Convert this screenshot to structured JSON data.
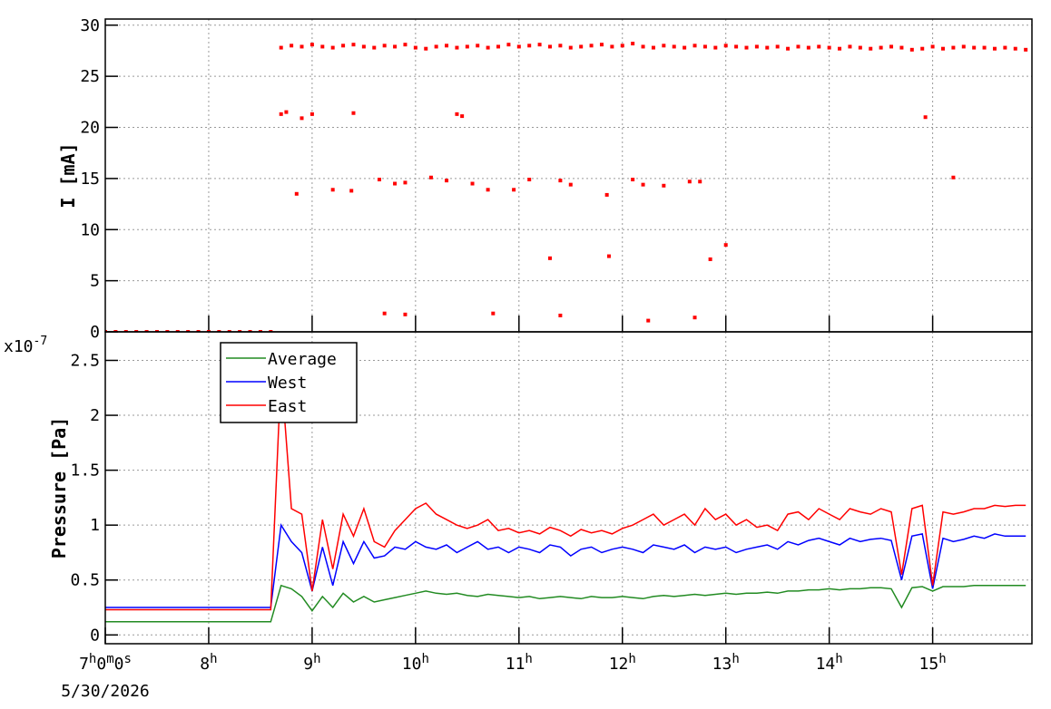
{
  "chart_data": [
    {
      "type": "scatter",
      "y_label": "I [mA]",
      "color": "#ff0000",
      "grid": true,
      "xlim": [
        7,
        15.96
      ],
      "ylim": [
        0,
        30.6
      ],
      "yticks": [
        0,
        5,
        10,
        15,
        20,
        25,
        30
      ],
      "xticks": [
        8,
        9,
        10,
        11,
        12,
        13,
        14,
        15
      ],
      "x": [
        7.0,
        7.1,
        7.2,
        7.3,
        7.4,
        7.5,
        7.6,
        7.7,
        7.8,
        7.9,
        8.0,
        8.1,
        8.2,
        8.3,
        8.4,
        8.5,
        8.6,
        8.7,
        8.8,
        8.9,
        9.0,
        9.1,
        9.2,
        9.3,
        9.4,
        9.5,
        9.6,
        9.7,
        9.8,
        9.9,
        10.0,
        10.1,
        10.2,
        10.3,
        10.4,
        10.5,
        10.6,
        10.7,
        10.8,
        10.9,
        11.0,
        11.1,
        11.2,
        11.3,
        11.4,
        11.5,
        11.6,
        11.7,
        11.8,
        11.9,
        12.0,
        12.1,
        12.2,
        12.3,
        12.4,
        12.5,
        12.6,
        12.7,
        12.8,
        12.9,
        13.0,
        13.1,
        13.2,
        13.3,
        13.4,
        13.5,
        13.6,
        13.7,
        13.8,
        13.9,
        14.0,
        14.1,
        14.2,
        14.3,
        14.4,
        14.5,
        14.6,
        14.7,
        14.8,
        14.9,
        15.0,
        15.1,
        15.2,
        15.3,
        15.4,
        15.5,
        15.6,
        15.7,
        15.8,
        15.9,
        8.7,
        8.75,
        8.85,
        8.9,
        9.0,
        9.2,
        9.38,
        9.4,
        9.65,
        9.8,
        9.9,
        10.15,
        10.3,
        10.4,
        10.45,
        10.55,
        10.7,
        10.95,
        11.1,
        11.3,
        11.4,
        11.5,
        11.85,
        11.87,
        12.1,
        12.2,
        12.4,
        12.65,
        12.75,
        12.85,
        13.0,
        14.93,
        15.2,
        9.7,
        9.9,
        10.75,
        11.4,
        12.25,
        12.7
      ],
      "values": [
        0,
        0,
        0,
        0,
        0,
        0,
        0,
        0,
        0,
        0,
        0,
        0,
        0,
        0,
        0,
        0,
        0,
        27.8,
        28.0,
        27.9,
        28.1,
        27.9,
        27.8,
        28.0,
        28.1,
        27.9,
        27.8,
        28.0,
        27.9,
        28.1,
        27.8,
        27.7,
        27.9,
        28.0,
        27.8,
        27.9,
        28.0,
        27.8,
        27.9,
        28.1,
        27.9,
        28.0,
        28.1,
        27.9,
        28.0,
        27.8,
        27.9,
        28.0,
        28.1,
        27.9,
        28.0,
        28.2,
        27.9,
        27.8,
        28.0,
        27.9,
        27.8,
        28.0,
        27.9,
        27.8,
        28.0,
        27.9,
        27.8,
        27.9,
        27.8,
        27.9,
        27.7,
        27.9,
        27.8,
        27.9,
        27.8,
        27.7,
        27.9,
        27.8,
        27.7,
        27.8,
        27.9,
        27.8,
        27.6,
        27.7,
        27.9,
        27.7,
        27.8,
        27.9,
        27.8,
        27.8,
        27.7,
        27.8,
        27.7,
        27.6,
        21.3,
        21.5,
        13.5,
        20.9,
        21.3,
        13.9,
        13.8,
        21.4,
        14.9,
        14.5,
        14.6,
        15.1,
        14.8,
        21.3,
        21.1,
        14.5,
        13.9,
        13.9,
        14.9,
        7.2,
        14.8,
        14.4,
        13.4,
        7.4,
        14.9,
        14.4,
        14.3,
        14.7,
        14.7,
        7.1,
        8.5,
        21.0,
        15.1,
        1.8,
        1.7,
        1.8,
        1.6,
        1.1,
        1.4
      ]
    },
    {
      "type": "line",
      "y_label": "Pressure [Pa]",
      "exponent_label": "x10-7",
      "date_label": "5/30/2026",
      "grid": true,
      "legend": "top-left",
      "xlim": [
        7,
        15.96
      ],
      "ylim": [
        -0.08,
        2.76
      ],
      "yticks": [
        0,
        0.5,
        1,
        1.5,
        2,
        2.5
      ],
      "xticks": [
        {
          "value": 7,
          "label": "7h0m0s"
        },
        {
          "value": 8,
          "label": "8h"
        },
        {
          "value": 9,
          "label": "9h"
        },
        {
          "value": 10,
          "label": "10h"
        },
        {
          "value": 11,
          "label": "11h"
        },
        {
          "value": 12,
          "label": "12h"
        },
        {
          "value": 13,
          "label": "13h"
        },
        {
          "value": 14,
          "label": "14h"
        },
        {
          "value": 15,
          "label": "15h"
        }
      ],
      "x": [
        7.0,
        7.1,
        7.2,
        7.3,
        7.4,
        7.5,
        7.6,
        7.7,
        7.8,
        7.9,
        8.0,
        8.1,
        8.2,
        8.3,
        8.4,
        8.5,
        8.6,
        8.7,
        8.8,
        8.9,
        9.0,
        9.1,
        9.2,
        9.3,
        9.4,
        9.5,
        9.6,
        9.7,
        9.8,
        9.9,
        10.0,
        10.1,
        10.2,
        10.3,
        10.4,
        10.5,
        10.6,
        10.7,
        10.8,
        10.9,
        11.0,
        11.1,
        11.2,
        11.3,
        11.4,
        11.5,
        11.6,
        11.7,
        11.8,
        11.9,
        12.0,
        12.1,
        12.2,
        12.3,
        12.4,
        12.5,
        12.6,
        12.7,
        12.8,
        12.9,
        13.0,
        13.1,
        13.2,
        13.3,
        13.4,
        13.5,
        13.6,
        13.7,
        13.8,
        13.9,
        14.0,
        14.1,
        14.2,
        14.3,
        14.4,
        14.5,
        14.6,
        14.7,
        14.8,
        14.9,
        15.0,
        15.1,
        15.2,
        15.3,
        15.4,
        15.5,
        15.6,
        15.7,
        15.8,
        15.9
      ],
      "series": [
        {
          "name": "Average",
          "color": "#228b22",
          "values": [
            0.12,
            0.12,
            0.12,
            0.12,
            0.12,
            0.12,
            0.12,
            0.12,
            0.12,
            0.12,
            0.12,
            0.12,
            0.12,
            0.12,
            0.12,
            0.12,
            0.12,
            0.45,
            0.42,
            0.35,
            0.22,
            0.35,
            0.25,
            0.38,
            0.3,
            0.35,
            0.3,
            0.32,
            0.34,
            0.36,
            0.38,
            0.4,
            0.38,
            0.37,
            0.38,
            0.36,
            0.35,
            0.37,
            0.36,
            0.35,
            0.34,
            0.35,
            0.33,
            0.34,
            0.35,
            0.34,
            0.33,
            0.35,
            0.34,
            0.34,
            0.35,
            0.34,
            0.33,
            0.35,
            0.36,
            0.35,
            0.36,
            0.37,
            0.36,
            0.37,
            0.38,
            0.37,
            0.38,
            0.38,
            0.39,
            0.38,
            0.4,
            0.4,
            0.41,
            0.41,
            0.42,
            0.41,
            0.42,
            0.42,
            0.43,
            0.43,
            0.42,
            0.25,
            0.43,
            0.44,
            0.4,
            0.44,
            0.44,
            0.44,
            0.45,
            0.45,
            0.45,
            0.45,
            0.45,
            0.45
          ]
        },
        {
          "name": "West",
          "color": "#0000ff",
          "values": [
            0.25,
            0.25,
            0.25,
            0.25,
            0.25,
            0.25,
            0.25,
            0.25,
            0.25,
            0.25,
            0.25,
            0.25,
            0.25,
            0.25,
            0.25,
            0.25,
            0.25,
            1.0,
            0.85,
            0.75,
            0.4,
            0.8,
            0.45,
            0.85,
            0.65,
            0.85,
            0.7,
            0.72,
            0.8,
            0.78,
            0.85,
            0.8,
            0.78,
            0.82,
            0.75,
            0.8,
            0.85,
            0.78,
            0.8,
            0.75,
            0.8,
            0.78,
            0.75,
            0.82,
            0.8,
            0.72,
            0.78,
            0.8,
            0.75,
            0.78,
            0.8,
            0.78,
            0.75,
            0.82,
            0.8,
            0.78,
            0.82,
            0.75,
            0.8,
            0.78,
            0.8,
            0.75,
            0.78,
            0.8,
            0.82,
            0.78,
            0.85,
            0.82,
            0.86,
            0.88,
            0.85,
            0.82,
            0.88,
            0.85,
            0.87,
            0.88,
            0.86,
            0.5,
            0.9,
            0.92,
            0.42,
            0.88,
            0.85,
            0.87,
            0.9,
            0.88,
            0.92,
            0.9,
            0.9,
            0.9
          ]
        },
        {
          "name": "East",
          "color": "#ff0000",
          "values": [
            0.23,
            0.23,
            0.23,
            0.23,
            0.23,
            0.23,
            0.23,
            0.23,
            0.23,
            0.23,
            0.23,
            0.23,
            0.23,
            0.23,
            0.23,
            0.23,
            0.23,
            2.4,
            1.15,
            1.1,
            0.4,
            1.05,
            0.6,
            1.1,
            0.9,
            1.15,
            0.85,
            0.8,
            0.95,
            1.05,
            1.15,
            1.2,
            1.1,
            1.05,
            1.0,
            0.97,
            1.0,
            1.05,
            0.95,
            0.97,
            0.93,
            0.95,
            0.92,
            0.98,
            0.95,
            0.9,
            0.96,
            0.93,
            0.95,
            0.92,
            0.97,
            1.0,
            1.05,
            1.1,
            1.0,
            1.05,
            1.1,
            1.0,
            1.15,
            1.05,
            1.1,
            1.0,
            1.05,
            0.98,
            1.0,
            0.95,
            1.1,
            1.12,
            1.05,
            1.15,
            1.1,
            1.05,
            1.15,
            1.12,
            1.1,
            1.15,
            1.12,
            0.55,
            1.15,
            1.18,
            0.45,
            1.12,
            1.1,
            1.12,
            1.15,
            1.15,
            1.18,
            1.17,
            1.18,
            1.18
          ]
        }
      ]
    }
  ]
}
